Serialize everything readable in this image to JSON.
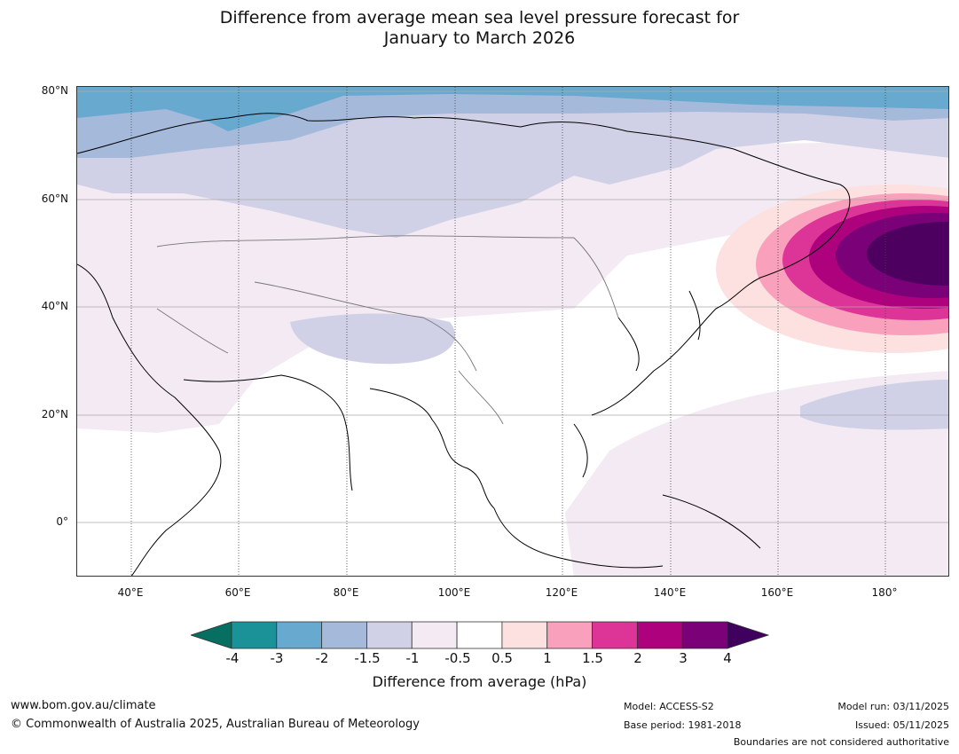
{
  "title": {
    "line1": "Difference from average mean sea level pressure forecast for",
    "line2": "January to March 2026"
  },
  "map": {
    "lat_labels": [
      "80°N",
      "60°N",
      "40°N",
      "20°N",
      "0°"
    ],
    "lon_labels": [
      "40°E",
      "60°E",
      "80°E",
      "100°E",
      "120°E",
      "140°E",
      "160°E",
      "180°"
    ]
  },
  "colorbar": {
    "label": "Difference from average (hPa)",
    "ticks": [
      "-4",
      "-3",
      "-2",
      "-1.5",
      "-1",
      "-0.5",
      "0.5",
      "1",
      "1.5",
      "2",
      "3",
      "4"
    ],
    "under_color": "#076e62",
    "over_color": "#3f005e",
    "colors": [
      "#1b9198",
      "#68a9d0",
      "#a5b9db",
      "#d0d1e6",
      "#f3eaf4",
      "#ffffff",
      "#fde0e0",
      "#f9a0bc",
      "#dd3497",
      "#ad017e",
      "#7a0177"
    ]
  },
  "footer": {
    "website": "www.bom.gov.au/climate",
    "copyright": "© Commonwealth of Australia 2025, Australian Bureau of Meteorology",
    "model": "Model: ACCESS-S2",
    "base_period": "Base period: 1981-2018",
    "model_run": "Model run: 03/11/2025",
    "issued": "Issued: 05/11/2025",
    "boundaries_note": "Boundaries are not considered authoritative"
  }
}
